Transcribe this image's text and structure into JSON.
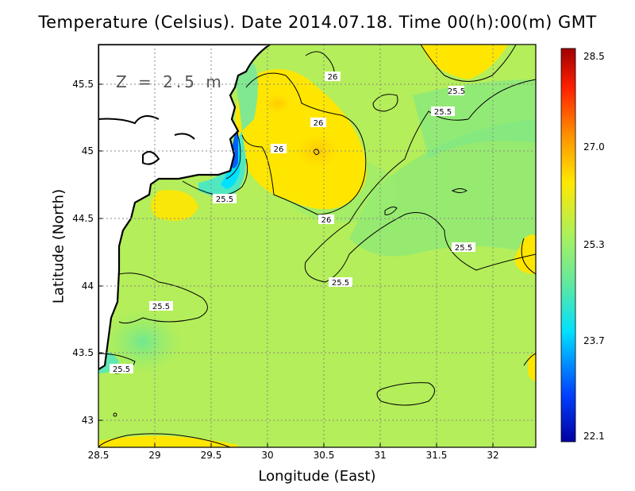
{
  "title": "Temperature (Celsius). Date 2014.07.18. Time 00(h):00(m) GMT",
  "depth_label": "Z = 2.5 m",
  "xlabel": "Longitude (East)",
  "ylabel": "Latitude (North)",
  "x_ticks": [
    "28.5",
    "29",
    "29.5",
    "30",
    "30.5",
    "31",
    "31.5",
    "32"
  ],
  "y_ticks": [
    "45.5",
    "45",
    "44.5",
    "44",
    "43.5",
    "43"
  ],
  "colorbar": {
    "ticks": [
      "28.5",
      "27.0",
      "25.3",
      "23.7",
      "22.1"
    ],
    "min": 22.1,
    "max": 28.5,
    "colors": [
      "#0000a0",
      "#0040ff",
      "#00e0ff",
      "#60e8a0",
      "#a8f060",
      "#ffe800",
      "#ff9000",
      "#ff2000",
      "#a00000"
    ]
  },
  "contour_labels": [
    "26",
    "26",
    "26",
    "26",
    "25.5",
    "25.5",
    "25.5",
    "25.5",
    "25.5",
    "25.5",
    "25.5"
  ],
  "colors": {
    "land": "#ffffff",
    "coastline": "#000000",
    "contour": "#000000",
    "grid": "#888888"
  }
}
